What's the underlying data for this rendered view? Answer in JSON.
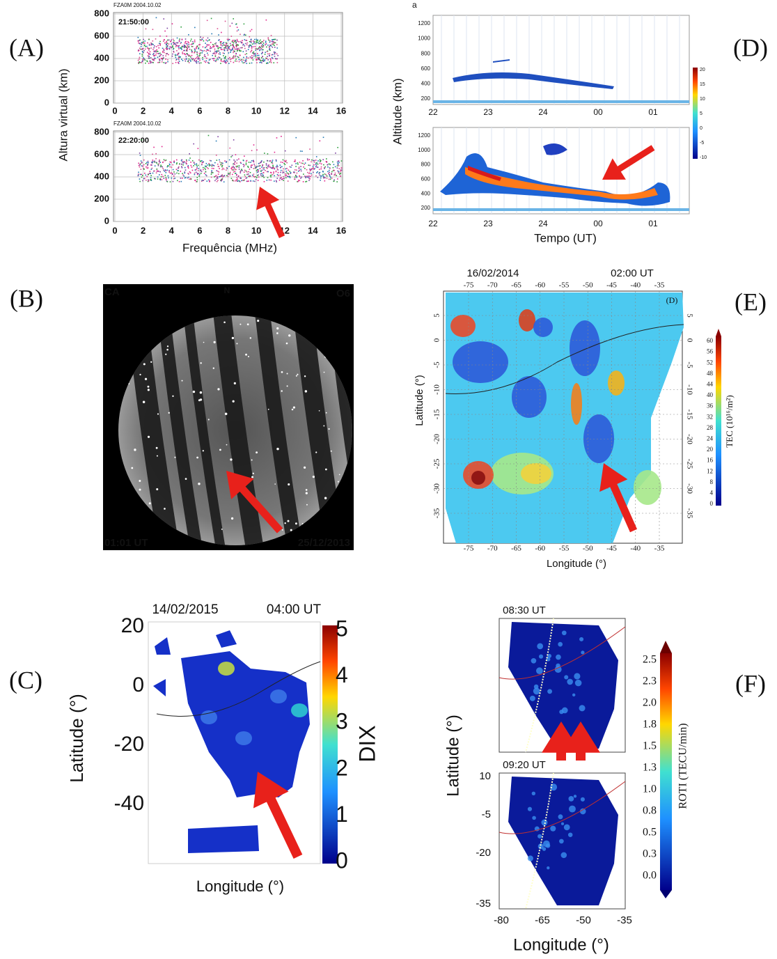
{
  "panels": [
    {
      "label": "(A)",
      "plots": [
        {
          "header": "FZA0M 2004.10.02",
          "time": "21:50:00"
        },
        {
          "header": "FZA0M 2004.10.02",
          "time": "22:20:00"
        }
      ],
      "yticks": [
        0,
        200,
        400,
        600,
        800
      ],
      "xticks": [
        0,
        2,
        4,
        6,
        8,
        10,
        12,
        14,
        16
      ],
      "ylabel": "Altura virtual (km)",
      "xlabel": "Frequência (MHz)"
    },
    {
      "label": "(D)",
      "tag": "a",
      "yticks": [
        200,
        400,
        600,
        800,
        1000,
        1200
      ],
      "xticks": [
        "22",
        "23",
        "24",
        "00",
        "01"
      ],
      "ylabel": "Altitude (km)",
      "xlabel": "Tempo (UT)",
      "colorbar_ticks": [
        20,
        15,
        10,
        5,
        0,
        -5,
        -10
      ]
    },
    {
      "label": "(B)",
      "corner_tl": "CA",
      "top": "N",
      "corner_tr": "O6",
      "corner_bl": "01:01 UT",
      "corner_br": "25/12/2013"
    },
    {
      "label": "(E)",
      "date": "16/02/2014",
      "time": "02:00 UT",
      "tag": "(D)",
      "lon_ticks": [
        -75,
        -70,
        -65,
        -60,
        -55,
        -50,
        -45,
        -40,
        -35
      ],
      "lat_ticks": [
        5,
        0,
        -5,
        -10,
        -15,
        -20,
        -25,
        -30,
        -35
      ],
      "ylabel": "Latitude (°)",
      "xlabel": "Longitude (°)",
      "colorbar_ticks": [
        60,
        56,
        52,
        48,
        44,
        40,
        36,
        32,
        28,
        24,
        20,
        16,
        12,
        8,
        4,
        0
      ],
      "colorbar_label": "TEC (10¹⁶/m²)"
    },
    {
      "label": "(C)",
      "date": "14/02/2015",
      "time": "04:00 UT",
      "yticks": [
        20,
        0,
        -20,
        -40
      ],
      "ylabel": "Latitude (°)",
      "xlabel": "Longitude (°)",
      "colorbar_ticks": [
        5,
        4,
        3,
        2,
        1,
        0
      ],
      "colorbar_label": "DIX"
    },
    {
      "label": "(F)",
      "times": [
        "08:30 UT",
        "09:20 UT"
      ],
      "yticks": [
        10,
        -5,
        -20,
        -35
      ],
      "xticks": [
        -80,
        -65,
        -50,
        -35
      ],
      "ylabel": "Latitude (°)",
      "xlabel": "Longitude (°)",
      "colorbar_ticks": [
        "2.5",
        "2.3",
        "2.0",
        "1.8",
        "1.5",
        "1.3",
        "1.0",
        "0.8",
        "0.5",
        "0.3",
        "0.0"
      ],
      "colorbar_label": "ROTI (TECU/min)"
    }
  ]
}
